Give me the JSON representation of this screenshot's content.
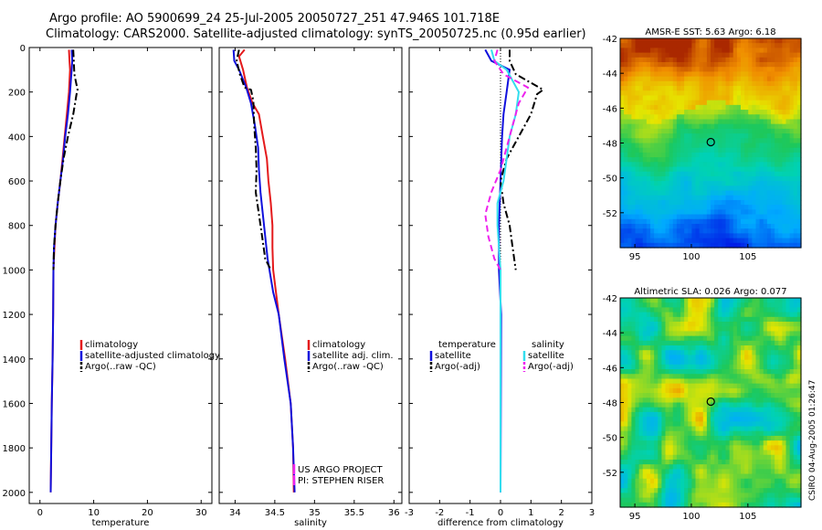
{
  "header": {
    "title_line1": "Argo profile: AO 5900699_24 25-Jul-2005 20050727_251 47.946S 101.718E",
    "title_line2": "Climatology: CARS2000. Satellite-adjusted climatology: synTS_20050725.nc (0.95d earlier)"
  },
  "side_label": "CSIRO 04-Aug-2005 01:26:47",
  "colors": {
    "red": "#e41a1c",
    "blue": "#1010dd",
    "cyan": "#33ddee",
    "magenta": "#ee22ee",
    "black": "#000000"
  },
  "chart_data": [
    {
      "type": "line",
      "xlabel": "temperature",
      "xlim": [
        -2,
        32
      ],
      "xticks": [
        0,
        10,
        20,
        30
      ],
      "ylim": [
        2050,
        0
      ],
      "yticks": [
        0,
        200,
        400,
        600,
        800,
        1000,
        1200,
        1400,
        1600,
        1800,
        2000
      ],
      "series": [
        {
          "name": "climatology",
          "color": "red",
          "dash": "solid",
          "points": [
            [
              5.4,
              10
            ],
            [
              5.5,
              60
            ],
            [
              5.6,
              100
            ],
            [
              5.4,
              200
            ],
            [
              5.0,
              300
            ],
            [
              4.6,
              400
            ],
            [
              4.2,
              500
            ],
            [
              3.8,
              600
            ],
            [
              3.3,
              700
            ],
            [
              2.9,
              800
            ],
            [
              2.7,
              900
            ],
            [
              2.5,
              1000
            ],
            [
              2.45,
              1200
            ],
            [
              2.35,
              1400
            ],
            [
              2.2,
              1600
            ],
            [
              2.1,
              1800
            ],
            [
              2.0,
              2000
            ]
          ]
        },
        {
          "name": "satellite-adjusted climatology",
          "color": "blue",
          "dash": "solid",
          "points": [
            [
              5.9,
              10
            ],
            [
              6.0,
              60
            ],
            [
              5.9,
              100
            ],
            [
              5.6,
              200
            ],
            [
              5.2,
              300
            ],
            [
              4.7,
              400
            ],
            [
              4.3,
              500
            ],
            [
              3.8,
              600
            ],
            [
              3.3,
              700
            ],
            [
              2.9,
              800
            ],
            [
              2.6,
              900
            ],
            [
              2.5,
              1000
            ],
            [
              2.45,
              1200
            ],
            [
              2.35,
              1400
            ],
            [
              2.2,
              1600
            ],
            [
              2.1,
              1800
            ],
            [
              2.0,
              2000
            ]
          ]
        },
        {
          "name": "Argo(..raw -QC)",
          "color": "black",
          "dash": "dashdot",
          "points": [
            [
              6.2,
              10
            ],
            [
              6.3,
              60
            ],
            [
              6.4,
              120
            ],
            [
              7.0,
              190
            ],
            [
              6.8,
              210
            ],
            [
              6.2,
              300
            ],
            [
              5.2,
              400
            ],
            [
              4.4,
              500
            ],
            [
              3.8,
              600
            ],
            [
              3.3,
              700
            ],
            [
              2.9,
              800
            ],
            [
              2.6,
              900
            ],
            [
              2.5,
              1000
            ]
          ]
        }
      ],
      "legend": [
        "climatology",
        "satellite-adjusted climatology",
        "Argo(..raw -QC)"
      ]
    },
    {
      "type": "line",
      "xlabel": "salinity",
      "xlim": [
        33.8,
        36.1
      ],
      "xticks": [
        34,
        34.5,
        35,
        35.5,
        36
      ],
      "ylim": [
        2050,
        0
      ],
      "yticks": [
        0,
        200,
        400,
        600,
        800,
        1000,
        1200,
        1400,
        1600,
        1800,
        2000
      ],
      "series": [
        {
          "name": "climatology",
          "color": "red",
          "dash": "solid",
          "points": [
            [
              34.12,
              10
            ],
            [
              34.05,
              40
            ],
            [
              34.1,
              100
            ],
            [
              34.15,
              180
            ],
            [
              34.22,
              250
            ],
            [
              34.3,
              300
            ],
            [
              34.35,
              400
            ],
            [
              34.4,
              500
            ],
            [
              34.42,
              600
            ],
            [
              34.45,
              700
            ],
            [
              34.47,
              800
            ],
            [
              34.47,
              900
            ],
            [
              34.48,
              1000
            ],
            [
              34.55,
              1200
            ],
            [
              34.63,
              1400
            ],
            [
              34.7,
              1600
            ],
            [
              34.73,
              1800
            ],
            [
              34.74,
              2000
            ]
          ]
        },
        {
          "name": "satellite adj. clim.",
          "color": "blue",
          "dash": "solid",
          "points": [
            [
              33.98,
              10
            ],
            [
              33.99,
              60
            ],
            [
              34.05,
              100
            ],
            [
              34.14,
              180
            ],
            [
              34.2,
              250
            ],
            [
              34.25,
              350
            ],
            [
              34.29,
              450
            ],
            [
              34.3,
              550
            ],
            [
              34.32,
              650
            ],
            [
              34.35,
              750
            ],
            [
              34.38,
              850
            ],
            [
              34.41,
              950
            ],
            [
              34.48,
              1100
            ],
            [
              34.55,
              1200
            ],
            [
              34.62,
              1400
            ],
            [
              34.7,
              1600
            ],
            [
              34.73,
              1800
            ],
            [
              34.75,
              2000
            ]
          ]
        },
        {
          "name": "Argo(..raw -QC)",
          "color": "black",
          "dash": "dashdot",
          "points": [
            [
              34.05,
              10
            ],
            [
              34.02,
              60
            ],
            [
              34.06,
              120
            ],
            [
              34.12,
              180
            ],
            [
              34.2,
              190
            ],
            [
              34.23,
              240
            ],
            [
              34.24,
              350
            ],
            [
              34.26,
              450
            ],
            [
              34.27,
              550
            ],
            [
              34.26,
              650
            ],
            [
              34.3,
              750
            ],
            [
              34.34,
              850
            ],
            [
              34.38,
              950
            ],
            [
              34.45,
              1000
            ]
          ]
        }
      ],
      "legend": [
        "climatology",
        "satellite adj. clim.",
        "Argo(..raw -QC)"
      ],
      "annotations": [
        "US ARGO PROJECT",
        "PI: STEPHEN RISER"
      ]
    },
    {
      "type": "line",
      "xlabel": "difference from climatology",
      "xlim": [
        -3,
        3
      ],
      "xticks": [
        -3,
        -2,
        -1,
        0,
        1,
        2,
        3
      ],
      "ylim": [
        2050,
        0
      ],
      "yticks": [
        0,
        200,
        400,
        600,
        800,
        1000,
        1200,
        1400,
        1600,
        1800,
        2000
      ],
      "series": [
        {
          "name": "temperature satellite",
          "color": "blue",
          "dash": "solid",
          "points": [
            [
              -0.5,
              10
            ],
            [
              -0.3,
              60
            ],
            [
              0.3,
              100
            ],
            [
              0.2,
              200
            ],
            [
              0.1,
              300
            ],
            [
              0.05,
              400
            ],
            [
              0,
              600
            ],
            [
              -0.05,
              800
            ],
            [
              -0.05,
              1000
            ],
            [
              0.02,
              1200
            ],
            [
              0,
              2000
            ]
          ]
        },
        {
          "name": "temperature Argo(-adj)",
          "color": "black",
          "dash": "dashdot",
          "points": [
            [
              0.3,
              10
            ],
            [
              0.3,
              60
            ],
            [
              0.5,
              120
            ],
            [
              1.4,
              190
            ],
            [
              1.2,
              210
            ],
            [
              1.0,
              300
            ],
            [
              0.6,
              400
            ],
            [
              0.2,
              500
            ],
            [
              0,
              600
            ],
            [
              0.1,
              700
            ],
            [
              0.3,
              800
            ],
            [
              0.4,
              900
            ],
            [
              0.5,
              1000
            ]
          ]
        },
        {
          "name": "salinity satellite",
          "color": "cyan",
          "dash": "solid",
          "points": [
            [
              -0.3,
              10
            ],
            [
              -0.2,
              60
            ],
            [
              0.2,
              100
            ],
            [
              0.6,
              200
            ],
            [
              0.5,
              300
            ],
            [
              0.3,
              400
            ],
            [
              0.2,
              500
            ],
            [
              0.1,
              600
            ],
            [
              -0.1,
              700
            ],
            [
              -0.1,
              800
            ],
            [
              0,
              1000
            ],
            [
              0,
              1200
            ],
            [
              0,
              2000
            ]
          ]
        },
        {
          "name": "salinity Argo(-adj)",
          "color": "magenta",
          "dash": "dashed",
          "points": [
            [
              -0.1,
              10
            ],
            [
              -0.2,
              60
            ],
            [
              0.1,
              120
            ],
            [
              0.9,
              180
            ],
            [
              0.6,
              250
            ],
            [
              0.4,
              350
            ],
            [
              0.2,
              450
            ],
            [
              0,
              550
            ],
            [
              -0.3,
              650
            ],
            [
              -0.5,
              750
            ],
            [
              -0.4,
              850
            ],
            [
              -0.2,
              950
            ],
            [
              0,
              1000
            ]
          ]
        }
      ],
      "legend_groups": [
        {
          "header": "temperature",
          "items": [
            "satellite",
            "Argo(-adj)"
          ]
        },
        {
          "header": "salinity",
          "items": [
            "satellite",
            "Argo(-adj)"
          ]
        }
      ]
    },
    {
      "type": "heatmap",
      "title": "AMSR-E SST: 5.63 Argo: 6.18",
      "xlim": [
        93.7,
        109.7
      ],
      "ylim": [
        -54,
        -42
      ],
      "xticks": [
        95,
        100,
        105
      ],
      "yticks": [
        -42,
        -44,
        -46,
        -48,
        -50,
        -52
      ],
      "marker": [
        101.718,
        -47.946
      ],
      "colormap": "jet-like"
    },
    {
      "type": "heatmap",
      "title": "Altimetric SLA: 0.026 Argo: 0.077",
      "xlim": [
        93.7,
        109.7
      ],
      "ylim": [
        -54,
        -42
      ],
      "xticks": [
        95,
        100,
        105
      ],
      "yticks": [
        -42,
        -44,
        -46,
        -48,
        -50,
        -52
      ],
      "marker": [
        101.718,
        -47.946
      ],
      "colormap": "jet-like"
    }
  ]
}
